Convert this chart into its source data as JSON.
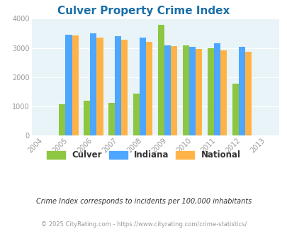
{
  "title": "Culver Property Crime Index",
  "years": [
    2004,
    2005,
    2006,
    2007,
    2008,
    2009,
    2010,
    2011,
    2012,
    2013
  ],
  "bar_years": [
    2005,
    2006,
    2007,
    2008,
    2009,
    2010,
    2011,
    2012
  ],
  "culver": [
    1070,
    1200,
    1120,
    1430,
    3800,
    3100,
    3000,
    1770
  ],
  "indiana": [
    3450,
    3510,
    3400,
    3360,
    3100,
    3040,
    3170,
    3040
  ],
  "national": [
    3430,
    3360,
    3290,
    3210,
    3060,
    2960,
    2920,
    2860
  ],
  "culver_color": "#8dc641",
  "indiana_color": "#4da6ff",
  "national_color": "#ffb347",
  "bg_color": "#e8f4f8",
  "ylim": [
    0,
    4000
  ],
  "yticks": [
    0,
    1000,
    2000,
    3000,
    4000
  ],
  "xlim": [
    2003.5,
    2013.5
  ],
  "legend_labels": [
    "Culver",
    "Indiana",
    "National"
  ],
  "footnote1": "Crime Index corresponds to incidents per 100,000 inhabitants",
  "footnote2": "© 2025 CityRating.com - https://www.cityrating.com/crime-statistics/",
  "bar_width": 0.26,
  "title_color": "#1a6fa8",
  "tick_color": "#999999",
  "footnote1_color": "#333333",
  "footnote2_color": "#999999"
}
